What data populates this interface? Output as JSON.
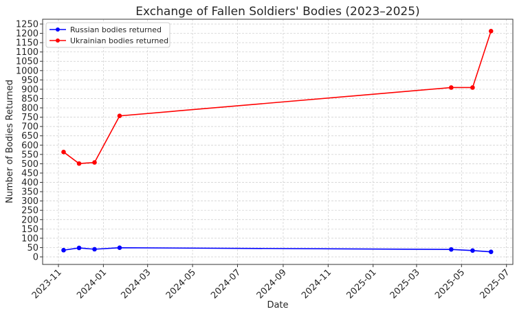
{
  "chart_data": {
    "type": "line",
    "title": "Exchange of Fallen Soldiers' Bodies (2023–2025)",
    "xlabel": "Date",
    "ylabel": "Number of Bodies Returned",
    "ylim": [
      0,
      1250
    ],
    "yticks": [
      0,
      50,
      100,
      150,
      200,
      250,
      300,
      350,
      400,
      450,
      500,
      550,
      600,
      650,
      700,
      750,
      800,
      850,
      900,
      950,
      1000,
      1050,
      1100,
      1150,
      1200,
      1250
    ],
    "xticks": [
      "2023-11",
      "2024-01",
      "2024-03",
      "2024-05",
      "2024-07",
      "2024-09",
      "2024-11",
      "2025-01",
      "2025-03",
      "2025-05",
      "2025-07"
    ],
    "grid": true,
    "legend_position": "top-left",
    "x": [
      "2023-11-08",
      "2023-11-29",
      "2023-12-20",
      "2024-01-23",
      "2025-04-17",
      "2025-05-16",
      "2025-06-10"
    ],
    "series": [
      {
        "name": "Russian bodies returned",
        "color": "#0000ff",
        "values": [
          36,
          48,
          41,
          49,
          40,
          34,
          27
        ]
      },
      {
        "name": "Ukrainian bodies returned",
        "color": "#ff0000",
        "values": [
          563,
          501,
          507,
          757,
          909,
          909,
          1212
        ]
      }
    ]
  }
}
